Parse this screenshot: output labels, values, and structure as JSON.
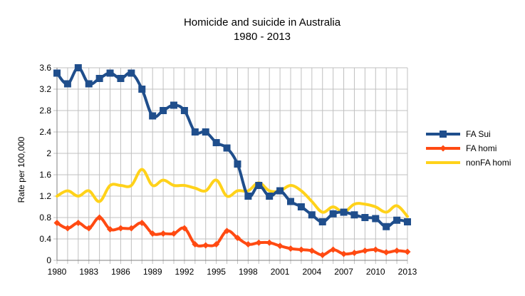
{
  "chart_data": {
    "type": "line",
    "title": "Homicide and suicide in Australia",
    "subtitle": "1980 - 2013",
    "xlabel": "",
    "ylabel": "Rate per 100,000",
    "ylim": [
      0,
      3.6
    ],
    "yticks": [
      0,
      0.4,
      0.8,
      1.2,
      1.6,
      2,
      2.4,
      2.8,
      3.2,
      3.6
    ],
    "ytick_labels": [
      "0",
      "0.4",
      "0.8",
      "1.2",
      "1.6",
      "2",
      "2.4",
      "2.8",
      "3.2",
      "3.6"
    ],
    "xlim": [
      1980,
      2013
    ],
    "xticks": [
      1980,
      1983,
      1986,
      1989,
      1992,
      1995,
      1998,
      2001,
      2004,
      2007,
      2010,
      2013
    ],
    "xtick_labels": [
      "1980",
      "1983",
      "1986",
      "1989",
      "1992",
      "1995",
      "1998",
      "2001",
      "2004",
      "2007",
      "2010",
      "2013"
    ],
    "grid": true,
    "legend_position": "right",
    "x": [
      1980,
      1981,
      1982,
      1983,
      1984,
      1985,
      1986,
      1987,
      1988,
      1989,
      1990,
      1991,
      1992,
      1993,
      1994,
      1995,
      1996,
      1997,
      1998,
      1999,
      2000,
      2001,
      2002,
      2003,
      2004,
      2005,
      2006,
      2007,
      2008,
      2009,
      2010,
      2011,
      2012,
      2013
    ],
    "series": [
      {
        "name": "FA Sui",
        "color": "#1f4e8c",
        "marker": "square",
        "values": [
          3.5,
          3.3,
          3.6,
          3.3,
          3.4,
          3.5,
          3.4,
          3.5,
          3.2,
          2.7,
          2.8,
          2.9,
          2.8,
          2.4,
          2.4,
          2.2,
          2.1,
          1.8,
          1.2,
          1.4,
          1.2,
          1.3,
          1.1,
          1.0,
          0.85,
          0.72,
          0.87,
          0.9,
          0.85,
          0.8,
          0.78,
          0.63,
          0.75,
          0.72
        ]
      },
      {
        "name": "FA homi",
        "color": "#ff4a12",
        "marker": "diamond",
        "values": [
          0.7,
          0.6,
          0.7,
          0.6,
          0.8,
          0.58,
          0.6,
          0.6,
          0.7,
          0.5,
          0.5,
          0.5,
          0.6,
          0.3,
          0.28,
          0.3,
          0.55,
          0.42,
          0.3,
          0.33,
          0.33,
          0.27,
          0.22,
          0.2,
          0.18,
          0.1,
          0.2,
          0.12,
          0.14,
          0.18,
          0.2,
          0.15,
          0.18,
          0.16
        ]
      },
      {
        "name": "nonFA homi",
        "color": "#ffd21a",
        "marker": "none",
        "values": [
          1.2,
          1.3,
          1.2,
          1.3,
          1.1,
          1.4,
          1.4,
          1.4,
          1.7,
          1.4,
          1.5,
          1.4,
          1.4,
          1.35,
          1.3,
          1.5,
          1.2,
          1.3,
          1.3,
          1.45,
          1.3,
          1.3,
          1.4,
          1.3,
          1.1,
          0.9,
          1.0,
          0.9,
          1.05,
          1.05,
          1.0,
          0.9,
          1.02,
          0.82
        ]
      }
    ]
  }
}
